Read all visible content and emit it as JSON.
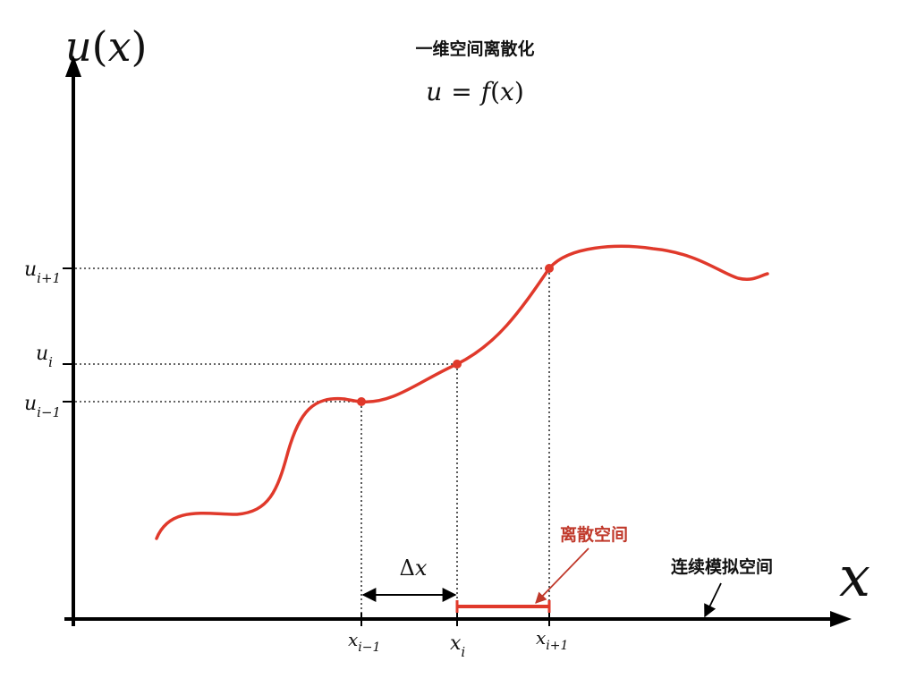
{
  "title": "一维空间离散化",
  "formula": {
    "lhs": "u",
    "eq": "=",
    "f": "f",
    "lp": "(",
    "arg": "x",
    "rp": ")"
  },
  "y_axis_label": {
    "u": "u",
    "lp": "(",
    "x": "x",
    "rp": ")"
  },
  "x_axis_label": "x",
  "y_ticks": [
    {
      "base": "u",
      "sub": "i+1"
    },
    {
      "base": "u",
      "sub": "i"
    },
    {
      "base": "u",
      "sub": "i−1"
    }
  ],
  "x_ticks": [
    {
      "base": "x",
      "sub": "i−1"
    },
    {
      "base": "x",
      "sub": "i"
    },
    {
      "base": "x",
      "sub": "i+1"
    }
  ],
  "delta_label": {
    "delta": "Δ",
    "x": "x"
  },
  "discrete_space_label": "离散空间",
  "continuous_space_label": "连续模拟空间",
  "colors": {
    "curve": "#e0392b",
    "axis": "#000000",
    "annotation_red": "#c0392b"
  }
}
